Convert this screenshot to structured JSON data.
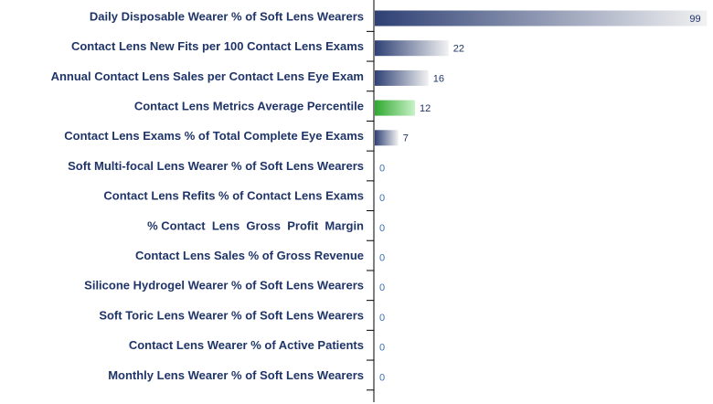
{
  "chart_data": {
    "type": "bar",
    "orientation": "horizontal",
    "categories": [
      "Daily Disposable Wearer % of Soft Lens Wearers",
      "Contact Lens New Fits per 100 Contact Lens Exams",
      "Annual Contact Lens Sales per Contact Lens Eye Exam",
      "Contact Lens Metrics Average Percentile",
      "Contact Lens Exams % of Total Complete Eye Exams",
      "Soft Multi-focal Lens Wearer % of Soft Lens Wearers",
      "Contact Lens Refits % of Contact Lens Exams",
      "% Contact  Lens  Gross  Profit  Margin",
      "Contact Lens Sales % of Gross Revenue",
      "Silicone Hydrogel Wearer % of Soft Lens Wearers",
      "Soft Toric Lens Wearer % of Soft Lens Wearers",
      "Contact Lens Wearer % of Active Patients",
      "Monthly Lens Wearer % of Soft Lens Wearers"
    ],
    "values": [
      99,
      22,
      16,
      12,
      7,
      0,
      0,
      0,
      0,
      0,
      0,
      0,
      0
    ],
    "value_labels": [
      "99",
      "22",
      "16",
      "12",
      "7",
      "0",
      "0",
      "0",
      "0",
      "0",
      "0",
      "0",
      "0"
    ],
    "highlight_category": "Contact Lens Metrics Average Percentile",
    "xlim": [
      0,
      100
    ],
    "grid": false,
    "legend": "none",
    "colors": {
      "bar_dark": "#2e4074",
      "bar_light": "#f2f2f2",
      "highlight_dark": "#2fa82f",
      "highlight_light": "#c8f2c8",
      "label_text": "#1f3468",
      "zero_text": "#3a6fb0",
      "axis": "#000000"
    }
  }
}
